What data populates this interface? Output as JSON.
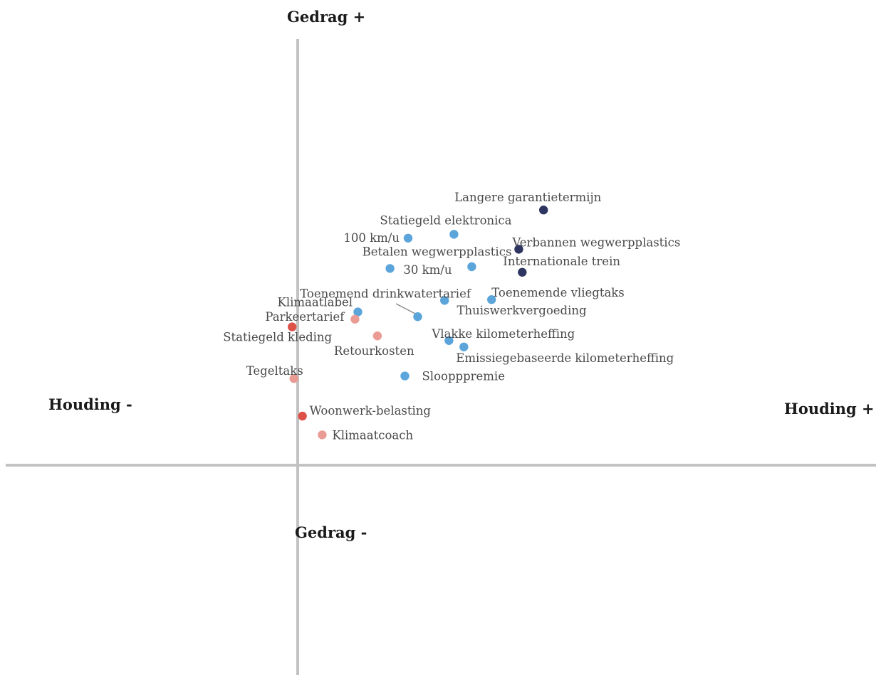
{
  "chart_data": {
    "type": "scatter",
    "axes": {
      "x_positive": "Houding +",
      "x_negative": "Houding -",
      "y_positive": "Gedrag +",
      "y_negative": "Gedrag -"
    },
    "xlim": [
      -1,
      2
    ],
    "ylim": [
      -1,
      1
    ],
    "colors": {
      "dark_navy": "#2e3560",
      "blue": "#5ba5db",
      "salmon": "#ea9c94",
      "red": "#dd5148",
      "axis": "#c2c2c2"
    },
    "points": [
      {
        "label": "Langere garantietermijn",
        "x": 0.842,
        "y": 0.598,
        "color": "dark_navy"
      },
      {
        "label": "Statiegeld elektronica",
        "x": 0.535,
        "y": 0.541,
        "color": "blue"
      },
      {
        "label": "100 km/u",
        "x": 0.378,
        "y": 0.532,
        "color": "blue"
      },
      {
        "label": "Verbannen wegwerpplastics",
        "x": 0.757,
        "y": 0.506,
        "color": "dark_navy"
      },
      {
        "label": "Betalen wegwerpplastics",
        "x": 0.316,
        "y": 0.461,
        "color": "blue"
      },
      {
        "label": "30 km/u",
        "x": 0.596,
        "y": 0.465,
        "color": "blue"
      },
      {
        "label": "Internationale trein",
        "x": 0.769,
        "y": 0.452,
        "color": "dark_navy"
      },
      {
        "label": "Toenemend drinkwatertarief",
        "x": 0.503,
        "y": 0.386,
        "color": "blue"
      },
      {
        "label": "Toenemende vliegtaks",
        "x": 0.664,
        "y": 0.388,
        "color": "blue"
      },
      {
        "label": "Klimaatlabel",
        "x": 0.206,
        "y": 0.359,
        "color": "blue"
      },
      {
        "label": "Thuiswerkvergoeding",
        "x": 0.411,
        "y": 0.348,
        "color": "blue"
      },
      {
        "label": "Parkeertarief",
        "x": 0.196,
        "y": 0.342,
        "color": "salmon"
      },
      {
        "label": "Statiegeld kleding",
        "x": -0.019,
        "y": 0.324,
        "color": "red"
      },
      {
        "label": "Retourkosten",
        "x": 0.273,
        "y": 0.303,
        "color": "salmon"
      },
      {
        "label": "Vlakke kilometerheffing",
        "x": 0.518,
        "y": 0.292,
        "color": "blue"
      },
      {
        "label": "Emissiegebaseerde kilometerheffing",
        "x": 0.569,
        "y": 0.277,
        "color": "blue"
      },
      {
        "label": "Sloopppremie",
        "x": 0.367,
        "y": 0.209,
        "color": "blue"
      },
      {
        "label": "Tegeltaks",
        "x": -0.013,
        "y": 0.203,
        "color": "salmon"
      },
      {
        "label": "Woonwerk-belasting",
        "x": 0.016,
        "y": 0.115,
        "color": "red"
      },
      {
        "label": "Klimaatcoach",
        "x": 0.084,
        "y": 0.071,
        "color": "salmon"
      }
    ]
  }
}
